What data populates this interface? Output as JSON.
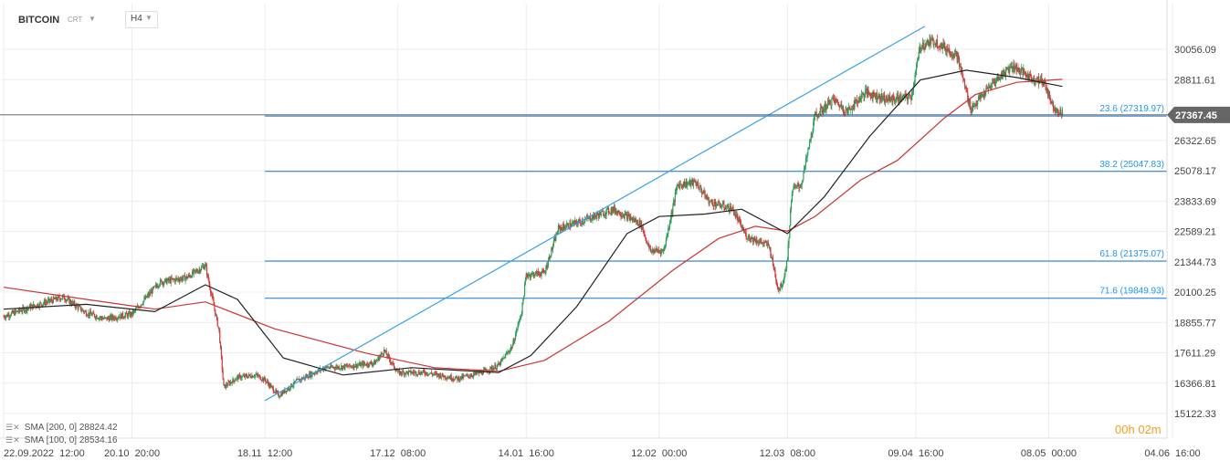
{
  "header": {
    "symbol": "BITCOIN",
    "symbol_sub": "CRT",
    "timeframe": "H4"
  },
  "legend": [
    {
      "label": "SMA [200, 0]",
      "value": "28824.42",
      "color": "#cc3333"
    },
    {
      "label": "SMA [100, 0]",
      "value": "28534.16",
      "color": "#222222"
    }
  ],
  "countdown": {
    "hours": "00",
    "h_unit": "h",
    "minutes": "02",
    "m_unit": "m"
  },
  "colors": {
    "up": "#2e9e5a",
    "down": "#d03a3a",
    "fib": "#1a73c8",
    "fib_label": "#2196f3",
    "trend": "#3aa0e8",
    "sma200": "#cc3333",
    "sma100": "#222222",
    "grid": "#ececec",
    "price_box": "#666666"
  },
  "chart_data": {
    "type": "candlestick",
    "title": "",
    "ylim": [
      14500,
      31200
    ],
    "y_ticks": [
      30056.09,
      28811.61,
      26322.65,
      25078.17,
      23833.69,
      22589.21,
      21344.73,
      20100.25,
      18855.77,
      17611.29,
      16366.81,
      15122.33
    ],
    "y_tick_labels": [
      "30056.09",
      "28811.61",
      "26322.65",
      "25078.17",
      "23833.69",
      "22589.21",
      "21344.73",
      "20100.25",
      "18855.77",
      "17611.29",
      "16366.81",
      "15122.33"
    ],
    "x_labels": [
      "22.09.2022  12:00",
      "20.10  20:00",
      "18.11  12:00",
      "17.12  08:00",
      "14.01  16:00",
      "12.02  00:00",
      "12.03  08:00",
      "09.04  16:00",
      "08.05  00:00",
      "04.06  16:00"
    ],
    "x_ticks": [
      "2022-09-22",
      "2022-10-20",
      "2022-11-18",
      "2022-12-17",
      "2023-01-14",
      "2023-02-12",
      "2023-03-12",
      "2023-04-09",
      "2023-05-08",
      "2023-06-04"
    ],
    "current_price": 27367.45,
    "current_price_label": "27367.45",
    "fib_levels": [
      {
        "label": "23.6 (27319.97)",
        "value": 27319.97
      },
      {
        "label": "38.2 (25047.83)",
        "value": 25047.83
      },
      {
        "label": "61.8 (21375.07)",
        "value": 21375.07
      },
      {
        "label": "71.6 (19849.93)",
        "value": 19849.93
      }
    ],
    "trend_line": {
      "from": [
        "2022-11-18",
        15650
      ],
      "to": [
        "2023-04-11",
        31000
      ]
    },
    "price_path": [
      [
        "2022-09-22",
        19100
      ],
      [
        "2022-09-28",
        19500
      ],
      [
        "2022-10-05",
        19900
      ],
      [
        "2022-10-10",
        19250
      ],
      [
        "2022-10-14",
        19000
      ],
      [
        "2022-10-20",
        19200
      ],
      [
        "2022-10-26",
        20500
      ],
      [
        "2022-11-01",
        20700
      ],
      [
        "2022-11-05",
        21200
      ],
      [
        "2022-11-08",
        18500
      ],
      [
        "2022-11-09",
        16200
      ],
      [
        "2022-11-12",
        16600
      ],
      [
        "2022-11-16",
        16700
      ],
      [
        "2022-11-18",
        16500
      ],
      [
        "2022-11-21",
        15850
      ],
      [
        "2022-11-25",
        16450
      ],
      [
        "2022-12-01",
        17000
      ],
      [
        "2022-12-06",
        17050
      ],
      [
        "2022-12-12",
        17200
      ],
      [
        "2022-12-14",
        17700
      ],
      [
        "2022-12-17",
        16800
      ],
      [
        "2022-12-23",
        16800
      ],
      [
        "2022-12-30",
        16550
      ],
      [
        "2023-01-05",
        16850
      ],
      [
        "2023-01-08",
        17100
      ],
      [
        "2023-01-11",
        17900
      ],
      [
        "2023-01-13",
        19300
      ],
      [
        "2023-01-14",
        20800
      ],
      [
        "2023-01-18",
        20900
      ],
      [
        "2023-01-21",
        22700
      ],
      [
        "2023-01-26",
        23000
      ],
      [
        "2023-02-02",
        23500
      ],
      [
        "2023-02-08",
        22900
      ],
      [
        "2023-02-10",
        21800
      ],
      [
        "2023-02-13",
        21800
      ],
      [
        "2023-02-16",
        24500
      ],
      [
        "2023-02-20",
        24600
      ],
      [
        "2023-02-23",
        23800
      ],
      [
        "2023-02-28",
        23500
      ],
      [
        "2023-03-03",
        22400
      ],
      [
        "2023-03-08",
        22000
      ],
      [
        "2023-03-10",
        20200
      ],
      [
        "2023-03-11",
        20500
      ],
      [
        "2023-03-12",
        21500
      ],
      [
        "2023-03-13",
        24300
      ],
      [
        "2023-03-15",
        24500
      ],
      [
        "2023-03-18",
        27300
      ],
      [
        "2023-03-22",
        28000
      ],
      [
        "2023-03-25",
        27500
      ],
      [
        "2023-03-29",
        28300
      ],
      [
        "2023-04-03",
        28000
      ],
      [
        "2023-04-08",
        28100
      ],
      [
        "2023-04-10",
        30200
      ],
      [
        "2023-04-13",
        30400
      ],
      [
        "2023-04-18",
        29800
      ],
      [
        "2023-04-21",
        27600
      ],
      [
        "2023-04-26",
        28700
      ],
      [
        "2023-04-30",
        29400
      ],
      [
        "2023-05-04",
        28900
      ],
      [
        "2023-05-07",
        28700
      ],
      [
        "2023-05-09",
        27700
      ],
      [
        "2023-05-11",
        27400
      ]
    ],
    "sma200_path": [
      [
        "2022-09-22",
        20300
      ],
      [
        "2022-10-10",
        19800
      ],
      [
        "2022-10-25",
        19400
      ],
      [
        "2022-11-05",
        19700
      ],
      [
        "2022-11-20",
        18600
      ],
      [
        "2022-12-10",
        17600
      ],
      [
        "2022-12-25",
        17000
      ],
      [
        "2023-01-08",
        16850
      ],
      [
        "2023-01-18",
        17300
      ],
      [
        "2023-02-01",
        18900
      ],
      [
        "2023-02-15",
        21000
      ],
      [
        "2023-02-25",
        22300
      ],
      [
        "2023-03-05",
        22800
      ],
      [
        "2023-03-12",
        22600
      ],
      [
        "2023-03-18",
        23200
      ],
      [
        "2023-03-28",
        24700
      ],
      [
        "2023-04-05",
        25500
      ],
      [
        "2023-04-15",
        27200
      ],
      [
        "2023-04-22",
        28200
      ],
      [
        "2023-05-01",
        28700
      ],
      [
        "2023-05-11",
        28824
      ]
    ],
    "sma100_path": [
      [
        "2022-09-22",
        19400
      ],
      [
        "2022-10-10",
        19600
      ],
      [
        "2022-10-25",
        19300
      ],
      [
        "2022-11-05",
        20400
      ],
      [
        "2022-11-12",
        19800
      ],
      [
        "2022-11-22",
        17400
      ],
      [
        "2022-12-05",
        16700
      ],
      [
        "2022-12-20",
        17000
      ],
      [
        "2023-01-08",
        16800
      ],
      [
        "2023-01-15",
        17500
      ],
      [
        "2023-01-25",
        19500
      ],
      [
        "2023-02-05",
        22500
      ],
      [
        "2023-02-12",
        23200
      ],
      [
        "2023-02-22",
        23300
      ],
      [
        "2023-03-02",
        23500
      ],
      [
        "2023-03-12",
        22500
      ],
      [
        "2023-03-20",
        24000
      ],
      [
        "2023-03-30",
        26500
      ],
      [
        "2023-04-10",
        28800
      ],
      [
        "2023-04-20",
        29200
      ],
      [
        "2023-05-01",
        28900
      ],
      [
        "2023-05-11",
        28534
      ]
    ]
  }
}
